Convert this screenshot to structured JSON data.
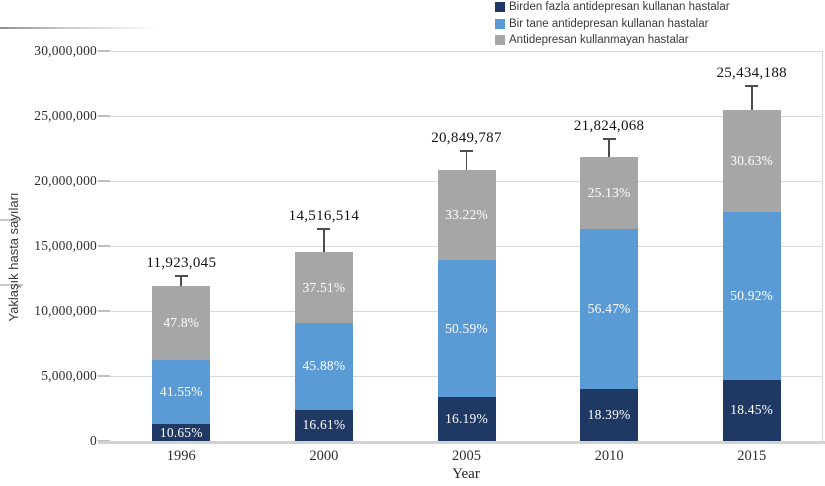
{
  "chart_data": {
    "type": "bar",
    "stacked": true,
    "xlabel": "Year",
    "ylabel": "Yaklaşık hasta sayıları",
    "categories": [
      "1996",
      "2000",
      "2005",
      "2010",
      "2015"
    ],
    "totals": [
      11923045,
      14516514,
      20849787,
      21824068,
      25434188
    ],
    "total_labels": [
      "11,923,045",
      "14,516,514",
      "20,849,787",
      "21,824,068",
      "25,434,188"
    ],
    "series": [
      {
        "name": "Birden fazla antidepresan kullanan hastalar",
        "color": "#1f3864",
        "percent": [
          10.65,
          16.61,
          16.19,
          18.39,
          18.45
        ],
        "percent_labels": [
          "10.65%",
          "16.61%",
          "16.19%",
          "18.39%",
          "18.45%"
        ]
      },
      {
        "name": "Bir tane antidepresan kullanan hastalar",
        "color": "#5b9bd5",
        "percent": [
          41.55,
          45.88,
          50.59,
          56.47,
          50.92
        ],
        "percent_labels": [
          "41.55%",
          "45.88%",
          "50.59%",
          "56.47%",
          "50.92%"
        ]
      },
      {
        "name": "Antidepresan kullanmayan hastalar",
        "color": "#a6a6a6",
        "percent": [
          47.8,
          37.51,
          33.22,
          25.13,
          30.63
        ],
        "percent_labels": [
          "47.8%",
          "37.51%",
          "33.22%",
          "25.13%",
          "30.63%"
        ]
      }
    ],
    "error_bars_upper": [
      850000,
      1850000,
      1550000,
      1450000,
      1950000
    ],
    "ylim": [
      0,
      30000000
    ],
    "ytick_step": 5000000,
    "ytick_labels": [
      "0",
      "5,000,000",
      "10,000,000",
      "15,000,000",
      "20,000,000",
      "25,000,000",
      "30,000,000"
    ],
    "grid": true,
    "legend_position": "top-right",
    "colors": {
      "gridline": "#d9d9d9",
      "axis_text": "#2e2e2e",
      "error_bar": "#4d4d4d",
      "bar_label_text": "#ffffff"
    }
  }
}
